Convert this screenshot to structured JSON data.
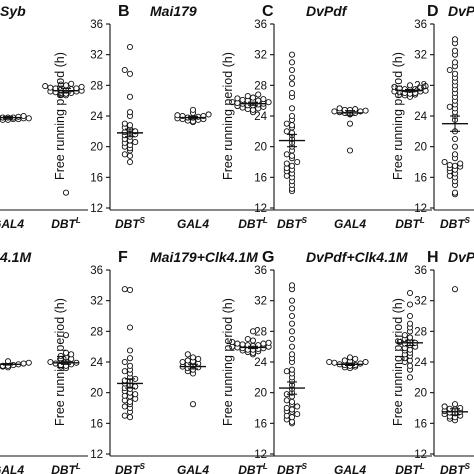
{
  "chart_data": [
    {
      "panel": "A",
      "title": "Syb",
      "type": "scatter",
      "categories": [
        "GAL4",
        "DBT^L"
      ],
      "ylabel": "",
      "ylim": [
        12,
        36
      ],
      "groups": [
        {
          "values": [
            23.5,
            23.6,
            23.7,
            23.8,
            23.9,
            24.0,
            23.6,
            23.7,
            23.8,
            23.9,
            23.5,
            23.7,
            23.8,
            23.6,
            23.9,
            23.7
          ],
          "mean": 23.8,
          "sem": 0.15
        },
        {
          "values": [
            26.8,
            27.0,
            27.2,
            27.4,
            27.6,
            27.8,
            28.0,
            28.2,
            27.1,
            27.3,
            27.5,
            27.7,
            26.9,
            27.2,
            27.6,
            27.9,
            26.7,
            27.4,
            28.1,
            27.0,
            14.0
          ],
          "mean": 27.3,
          "sem": 0.3
        }
      ]
    },
    {
      "panel": "B",
      "title": "Mai179",
      "type": "scatter",
      "categories": [
        "DBT^S",
        "GAL4",
        "DBT^L"
      ],
      "ylabel": "Free running period (h)",
      "ylim": [
        12,
        36
      ],
      "yticks": [
        12,
        16,
        20,
        24,
        28,
        32,
        36
      ],
      "groups": [
        {
          "values": [
            33.0,
            30.0,
            29.5,
            26.5,
            24.5,
            24.0,
            23.0,
            22.5,
            22.3,
            22.0,
            21.8,
            21.5,
            21.3,
            21.0,
            20.8,
            20.5,
            20.2,
            20.0,
            19.8,
            19.5,
            19.0,
            18.8,
            18.0,
            22.8,
            21.6,
            20.6,
            21.9
          ],
          "mean": 21.8,
          "sem": 0.5
        },
        {
          "values": [
            23.2,
            23.4,
            23.6,
            23.8,
            24.0,
            24.2,
            24.4,
            24.8,
            23.5,
            23.7,
            23.9,
            24.1,
            23.3,
            23.6,
            24.0,
            23.8
          ],
          "mean": 23.8,
          "sem": 0.15
        },
        {
          "values": [
            24.5,
            24.8,
            25.0,
            25.2,
            25.4,
            25.6,
            25.8,
            26.0,
            26.2,
            26.4,
            26.6,
            26.8,
            25.1,
            25.3,
            25.5,
            25.7,
            25.9,
            26.1,
            26.3,
            24.9,
            25.6,
            26.0,
            25.4,
            25.8
          ],
          "mean": 25.6,
          "sem": 0.2
        }
      ]
    },
    {
      "panel": "C",
      "title": "DvPdf",
      "type": "scatter",
      "categories": [
        "DBT^S",
        "GAL4",
        "DBT^L"
      ],
      "ylabel": "Free running period (h)",
      "ylim": [
        12,
        36
      ],
      "yticks": [
        12,
        16,
        20,
        24,
        28,
        32,
        36
      ],
      "groups": [
        {
          "values": [
            32.0,
            31.0,
            30.0,
            29.0,
            28.2,
            27.0,
            26.5,
            25.0,
            24.0,
            23.5,
            23.0,
            22.5,
            22.0,
            21.8,
            21.5,
            21.0,
            20.5,
            20.0,
            19.5,
            19.0,
            18.5,
            18.0,
            17.8,
            17.5,
            17.0,
            16.8,
            16.5,
            16.2,
            16.0,
            15.5,
            15.0,
            14.5,
            14.2,
            22.8,
            18.8,
            17.2
          ],
          "mean": 20.8,
          "sem": 0.8
        },
        {
          "values": [
            24.2,
            24.4,
            24.6,
            24.8,
            25.0,
            24.5,
            24.7,
            24.3,
            24.9,
            24.6,
            23.0,
            19.5,
            24.8,
            24.4
          ],
          "mean": 24.4,
          "sem": 0.3
        },
        {
          "values": [
            26.5,
            26.8,
            27.0,
            27.2,
            27.4,
            27.6,
            27.8,
            28.0,
            26.9,
            27.1,
            27.3,
            27.5,
            27.7,
            26.7,
            27.9,
            27.2,
            27.5,
            27.0
          ],
          "mean": 27.3,
          "sem": 0.15
        }
      ]
    },
    {
      "panel": "D",
      "title": "DvPdf+",
      "type": "scatter",
      "categories": [
        "DBT^S"
      ],
      "ylabel": "Free running period (h)",
      "ylim": [
        12,
        36
      ],
      "yticks": [
        12,
        16,
        20,
        24,
        28,
        32,
        36
      ],
      "groups": [
        {
          "values": [
            34.0,
            33.5,
            32.5,
            32.0,
            31.0,
            30.5,
            30.0,
            29.5,
            29.0,
            28.5,
            28.0,
            27.5,
            27.0,
            26.5,
            26.0,
            25.5,
            25.0,
            24.5,
            24.0,
            23.5,
            22.0,
            21.0,
            20.0,
            19.0,
            18.5,
            18.0,
            17.8,
            17.6,
            17.4,
            17.2,
            17.0,
            16.8,
            16.5,
            16.2,
            16.0,
            15.5,
            15.0,
            14.0,
            13.8,
            25.2,
            17.5
          ],
          "mean": 23.0,
          "sem": 1.0
        }
      ]
    },
    {
      "panel": "E",
      "title": "4.1M",
      "type": "scatter",
      "categories": [
        "GAL4",
        "DBT^L"
      ],
      "ylabel": "",
      "ylim": [
        12,
        36
      ],
      "groups": [
        {
          "values": [
            23.3,
            23.5,
            23.7,
            23.9,
            24.1,
            23.4,
            23.6,
            23.8,
            24.0,
            23.5,
            23.7,
            23.9,
            23.6
          ],
          "mean": 23.7,
          "sem": 0.1
        },
        {
          "values": [
            23.2,
            23.4,
            23.6,
            23.8,
            24.0,
            24.2,
            24.4,
            24.6,
            24.8,
            25.0,
            25.2,
            27.5,
            23.5,
            23.9,
            24.3,
            23.7
          ],
          "mean": 23.9,
          "sem": 0.2
        }
      ]
    },
    {
      "panel": "F",
      "title": "Mai179+Clk4.1M",
      "type": "scatter",
      "categories": [
        "DBT^S",
        "GAL4",
        "DBT^L"
      ],
      "ylabel": "Free running period (h)",
      "ylim": [
        12,
        36
      ],
      "yticks": [
        12,
        16,
        20,
        24,
        28,
        32,
        36
      ],
      "groups": [
        {
          "values": [
            33.5,
            33.4,
            28.5,
            25.5,
            24.5,
            24.0,
            23.5,
            23.0,
            22.5,
            22.0,
            21.8,
            21.5,
            21.2,
            21.0,
            20.8,
            20.5,
            20.2,
            20.0,
            19.8,
            19.5,
            19.2,
            19.0,
            18.5,
            18.2,
            18.0,
            17.5,
            17.0,
            16.8,
            22.8,
            21.6,
            20.6,
            19.6,
            18.8
          ],
          "mean": 21.2,
          "sem": 0.6
        },
        {
          "values": [
            22.5,
            22.8,
            23.0,
            23.2,
            23.4,
            23.6,
            23.8,
            24.0,
            24.2,
            24.4,
            24.6,
            25.0,
            18.5,
            23.3,
            23.7,
            24.1
          ],
          "mean": 23.4,
          "sem": 0.3
        },
        {
          "values": [
            25.0,
            25.2,
            25.4,
            25.6,
            25.8,
            26.0,
            26.2,
            26.4,
            26.6,
            26.8,
            27.0,
            28.0,
            25.3,
            25.5,
            25.7,
            25.9,
            26.1,
            26.3,
            26.5,
            25.8,
            26.0,
            25.6,
            26.2,
            26.4
          ],
          "mean": 25.9,
          "sem": 0.15
        }
      ]
    },
    {
      "panel": "G",
      "title": "DvPdf+Clk4.1M",
      "type": "scatter",
      "categories": [
        "DBT^S",
        "GAL4",
        "DBT^L"
      ],
      "ylabel": "Free running period (h)",
      "ylim": [
        12,
        36
      ],
      "yticks": [
        12,
        16,
        20,
        24,
        28,
        32,
        36
      ],
      "groups": [
        {
          "values": [
            34.0,
            33.5,
            32.0,
            31.0,
            30.0,
            29.0,
            28.0,
            27.0,
            26.0,
            25.0,
            24.5,
            24.0,
            23.0,
            22.5,
            22.0,
            21.5,
            21.0,
            20.5,
            20.0,
            19.5,
            19.0,
            18.5,
            18.2,
            18.0,
            17.8,
            17.5,
            17.2,
            17.0,
            16.8,
            16.5,
            16.2,
            16.0,
            22.8,
            19.8,
            18.8,
            17.6
          ],
          "mean": 20.6,
          "sem": 0.8
        },
        {
          "values": [
            23.2,
            23.4,
            23.6,
            23.8,
            24.0,
            24.2,
            24.4,
            24.6,
            23.5,
            23.7,
            23.9,
            24.1,
            23.3,
            23.6,
            24.0
          ],
          "mean": 23.7,
          "sem": 0.15
        },
        {
          "values": [
            33.0,
            31.5,
            30.0,
            29.0,
            28.5,
            28.0,
            27.5,
            27.0,
            26.8,
            26.5,
            26.2,
            26.0,
            25.8,
            25.5,
            25.2,
            25.0,
            24.8,
            24.5,
            24.2,
            24.0,
            23.5,
            23.0,
            22.0,
            27.2,
            26.6,
            25.6,
            26.4
          ],
          "mean": 26.5,
          "sem": 0.35
        }
      ]
    },
    {
      "panel": "H",
      "title": "DvPdf+M",
      "type": "scatter",
      "categories": [
        "DBT^S"
      ],
      "ylabel": "Free running period (h)",
      "ylim": [
        12,
        36
      ],
      "yticks": [
        12,
        16,
        20,
        24,
        28,
        32,
        36
      ],
      "groups": [
        {
          "values": [
            33.5,
            18.5,
            18.2,
            18.0,
            17.8,
            17.6,
            17.4,
            17.2,
            17.0,
            16.8,
            16.6,
            16.4,
            17.5,
            17.9,
            17.3,
            16.9
          ],
          "mean": 17.5,
          "sem": 0.4
        }
      ]
    }
  ]
}
